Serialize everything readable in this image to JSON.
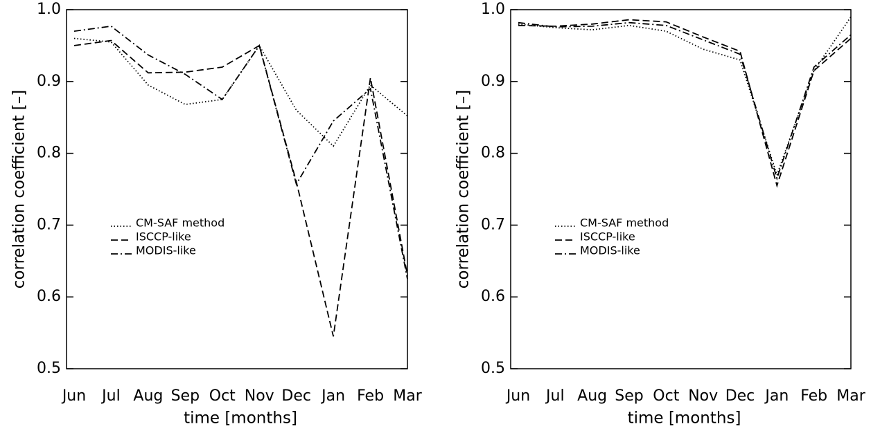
{
  "chart_data": [
    {
      "type": "line",
      "xlabel": "time [months]",
      "ylabel": "correlation coefficient [–]",
      "categories": [
        "Jun",
        "Jul",
        "Aug",
        "Sep",
        "Oct",
        "Nov",
        "Dec",
        "Jan",
        "Feb",
        "Mar"
      ],
      "ylim": [
        0.5,
        1
      ],
      "yticks": [
        0.5,
        0.6,
        0.7,
        0.8,
        0.9,
        {
          "value": 1,
          "label": "1.0"
        }
      ],
      "series": [
        {
          "name": "CM-SAF method",
          "color": "#000000",
          "style": "dotted",
          "values": [
            0.96,
            0.955,
            0.895,
            0.868,
            0.875,
            0.95,
            0.86,
            0.81,
            0.895,
            0.852
          ]
        },
        {
          "name": "ISCCP-like",
          "color": "#000000",
          "style": "dashed",
          "values": [
            0.95,
            0.957,
            0.912,
            0.913,
            0.92,
            0.95,
            0.76,
            0.545,
            0.905,
            0.63
          ]
        },
        {
          "name": "MODIS-like",
          "color": "#000000",
          "style": "dashdot",
          "values": [
            0.97,
            0.977,
            0.937,
            0.91,
            0.875,
            0.95,
            0.757,
            0.845,
            0.89,
            0.625
          ]
        }
      ]
    },
    {
      "type": "line",
      "xlabel": "time [months]",
      "ylabel": "correlation coefficient [–]",
      "categories": [
        "Jun",
        "Jul",
        "Aug",
        "Sep",
        "Oct",
        "Nov",
        "Dec",
        "Jan",
        "Feb",
        "Mar"
      ],
      "ylim": [
        0.5,
        1
      ],
      "yticks": [
        0.5,
        0.6,
        0.7,
        0.8,
        0.9,
        {
          "value": 1,
          "label": "1.0"
        }
      ],
      "series": [
        {
          "name": "CM-SAF method",
          "color": "#000000",
          "style": "dotted",
          "values": [
            0.98,
            0.975,
            0.972,
            0.978,
            0.97,
            0.945,
            0.93,
            0.77,
            0.915,
            0.99
          ]
        },
        {
          "name": "ISCCP-like",
          "color": "#000000",
          "style": "dashed",
          "values": [
            0.978,
            0.977,
            0.98,
            0.986,
            0.983,
            0.962,
            0.942,
            0.755,
            0.915,
            0.96
          ]
        },
        {
          "name": "MODIS-like",
          "color": "#000000",
          "style": "dashdot",
          "values": [
            0.982,
            0.976,
            0.977,
            0.982,
            0.978,
            0.958,
            0.938,
            0.765,
            0.92,
            0.965
          ]
        }
      ]
    }
  ]
}
